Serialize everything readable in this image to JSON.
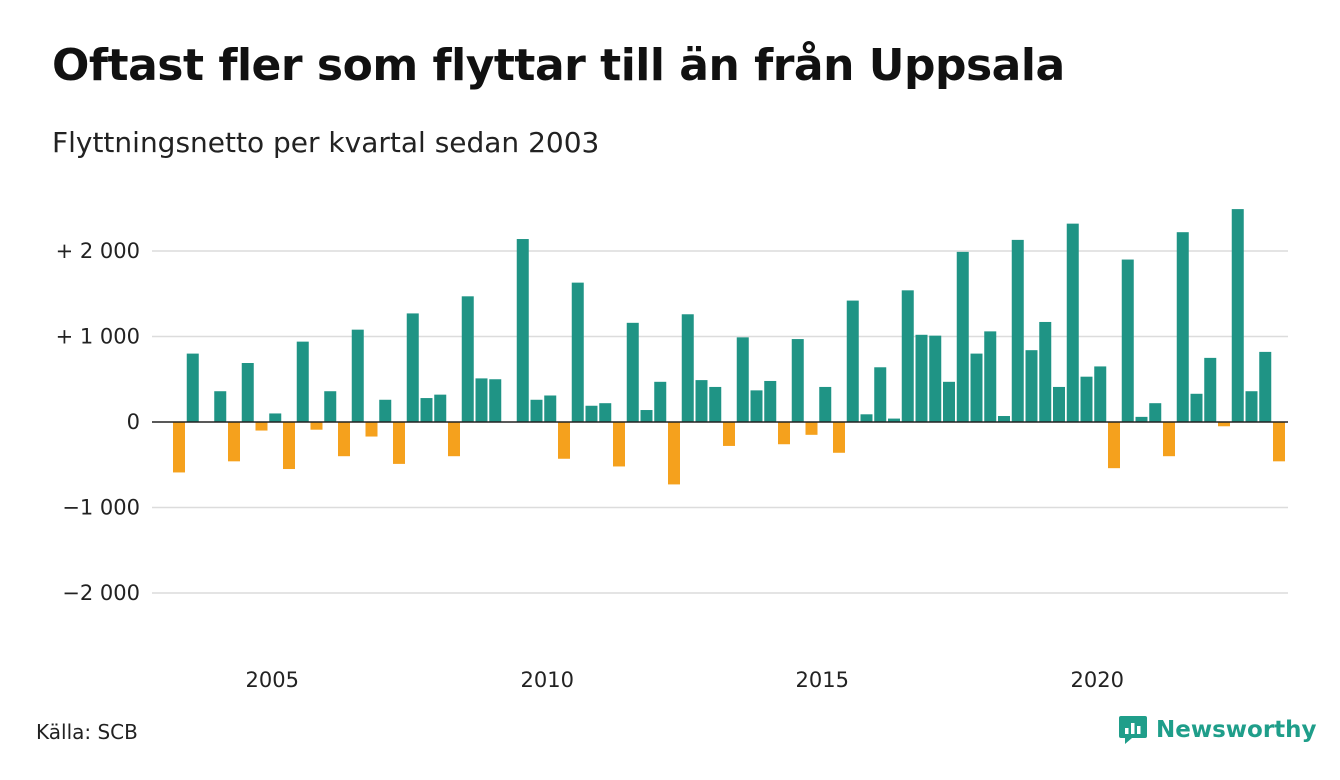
{
  "title": "Oftast fler som flyttar till än från Uppsala",
  "subtitle": "Flyttningsnetto per kvartal sedan 2003",
  "source": "Källa: SCB",
  "brand": "Newsworthy",
  "colors": {
    "positive": "#1f9485",
    "negative": "#f5a11d",
    "grid": "#dcdcdc",
    "zero": "#222222",
    "brand": "#1f9e8a"
  },
  "chart_data": {
    "type": "bar",
    "title": "Oftast fler som flyttar till än från Uppsala",
    "subtitle": "Flyttningsnetto per kvartal sedan 2003",
    "xlabel": "",
    "ylabel": "",
    "ylim": [
      -2400,
      2600
    ],
    "y_ticks": [
      2000,
      1000,
      0,
      -1000,
      -2000
    ],
    "y_tick_labels": [
      "+ 2 000",
      "+ 1 000",
      "0",
      "−1 000",
      "−2 000"
    ],
    "x_ticks": [
      "2005",
      "2010",
      "2015",
      "2020"
    ],
    "x_tick_years": [
      2005,
      2010,
      2015,
      2020
    ],
    "grid": true,
    "series": [
      {
        "start": "2003 Q2",
        "values": [
          -590,
          800,
          0,
          360,
          -460,
          690,
          -100,
          100,
          -550,
          940,
          -90,
          360,
          -400,
          1080,
          -170,
          260,
          -490,
          1270,
          280,
          320,
          -400,
          1470,
          510,
          500,
          0,
          2140,
          260,
          310,
          -430,
          1630,
          190,
          220,
          -520,
          1160,
          140,
          470,
          -730,
          1260,
          490,
          410,
          -280,
          990,
          370,
          480,
          -260,
          970,
          -150,
          410,
          -360,
          1420,
          90,
          640,
          40,
          1540,
          1020,
          1010,
          470,
          1990,
          800,
          1060,
          70,
          2130,
          840,
          1170,
          410,
          2320,
          530,
          650,
          -540,
          1900,
          60,
          220,
          -400,
          2220,
          330,
          750,
          -50,
          2490,
          360,
          820,
          -460
        ]
      }
    ]
  }
}
